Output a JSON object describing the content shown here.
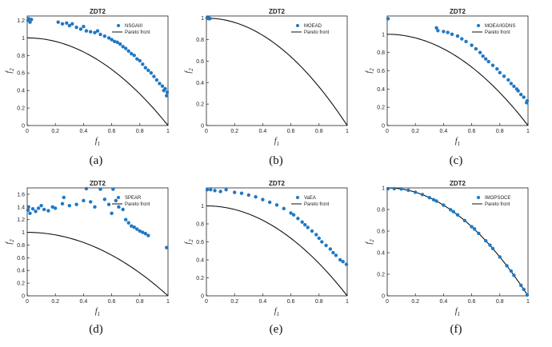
{
  "chart_data": [
    {
      "type": "scatter",
      "caption": "(a)",
      "title": "ZDT2",
      "xlabel": "f1",
      "ylabel": "f2",
      "xlim": [
        0,
        1
      ],
      "ylim": [
        0,
        1.25
      ],
      "xticks": [
        0,
        0.2,
        0.4,
        0.6,
        0.8,
        1
      ],
      "xtick_labels": [
        "0",
        "0.2",
        "0.4",
        "0.6",
        "0.8",
        "1"
      ],
      "yticks": [
        0,
        0.2,
        0.4,
        0.6,
        0.8,
        1,
        1.2
      ],
      "ytick_labels": [
        "0",
        "0.2",
        "0.4",
        "0.6",
        "0.8",
        "1",
        "1.2"
      ],
      "legend": [
        "NSGAIII",
        "Pareto front"
      ],
      "legend_position": "top-right",
      "series": [
        {
          "name": "NSGAIII",
          "points": [
            [
              0.0,
              1.2
            ],
            [
              0.01,
              1.22
            ],
            [
              0.02,
              1.18
            ],
            [
              0.03,
              1.21
            ],
            [
              0.22,
              1.18
            ],
            [
              0.25,
              1.16
            ],
            [
              0.28,
              1.17
            ],
            [
              0.3,
              1.14
            ],
            [
              0.32,
              1.16
            ],
            [
              0.35,
              1.12
            ],
            [
              0.38,
              1.1
            ],
            [
              0.4,
              1.13
            ],
            [
              0.42,
              1.08
            ],
            [
              0.45,
              1.07
            ],
            [
              0.48,
              1.06
            ],
            [
              0.5,
              1.08
            ],
            [
              0.52,
              1.04
            ],
            [
              0.55,
              1.02
            ],
            [
              0.58,
              1.0
            ],
            [
              0.6,
              0.98
            ],
            [
              0.62,
              0.96
            ],
            [
              0.64,
              0.95
            ],
            [
              0.66,
              0.93
            ],
            [
              0.68,
              0.9
            ],
            [
              0.7,
              0.88
            ],
            [
              0.72,
              0.85
            ],
            [
              0.74,
              0.82
            ],
            [
              0.76,
              0.8
            ],
            [
              0.78,
              0.76
            ],
            [
              0.8,
              0.74
            ],
            [
              0.82,
              0.7
            ],
            [
              0.84,
              0.66
            ],
            [
              0.86,
              0.63
            ],
            [
              0.88,
              0.6
            ],
            [
              0.9,
              0.56
            ],
            [
              0.92,
              0.52
            ],
            [
              0.94,
              0.48
            ],
            [
              0.96,
              0.45
            ],
            [
              0.98,
              0.42
            ],
            [
              1.0,
              0.38
            ],
            [
              0.99,
              0.34
            ],
            [
              0.97,
              0.4
            ]
          ]
        },
        {
          "name": "Pareto front",
          "function": "1 - x^2"
        }
      ]
    },
    {
      "type": "scatter",
      "caption": "(b)",
      "title": "ZDT2",
      "xlabel": "f1",
      "ylabel": "f2",
      "xlim": [
        0,
        1
      ],
      "ylim": [
        0,
        1.02
      ],
      "xticks": [
        0,
        0.2,
        0.4,
        0.6,
        0.8,
        1
      ],
      "xtick_labels": [
        "0",
        "0.2",
        "0.4",
        "0.6",
        "0.8",
        "1"
      ],
      "yticks": [
        0,
        0.2,
        0.4,
        0.6,
        0.8,
        1
      ],
      "ytick_labels": [
        "0",
        "0.2",
        "0.4",
        "0.6",
        "0.8",
        "1"
      ],
      "legend": [
        "MOEAD",
        "Pareto front"
      ],
      "legend_position": "top-right",
      "series": [
        {
          "name": "MOEAD",
          "points": [
            [
              0.0,
              1.0
            ],
            [
              0.005,
              1.0
            ],
            [
              0.01,
              1.0
            ],
            [
              0.015,
              0.995
            ],
            [
              0.02,
              1.0
            ],
            [
              0.025,
              0.995
            ]
          ]
        },
        {
          "name": "Pareto front",
          "function": "1 - x^2"
        }
      ]
    },
    {
      "type": "scatter",
      "caption": "(c)",
      "title": "ZDT2",
      "xlabel": "f1",
      "ylabel": "f2",
      "xlim": [
        0,
        1
      ],
      "ylim": [
        0,
        1.2
      ],
      "xticks": [
        0,
        0.2,
        0.4,
        0.6,
        0.8,
        1
      ],
      "xtick_labels": [
        "0",
        "0.2",
        "0.4",
        "0.6",
        "0.8",
        "1"
      ],
      "yticks": [
        0,
        0.2,
        0.4,
        0.6,
        0.8,
        1
      ],
      "ytick_labels": [
        "0",
        "0.2",
        "0.4",
        "0.6",
        "0.8",
        "1"
      ],
      "legend": [
        "MOEA/IGDNS",
        "Pareto front"
      ],
      "legend_position": "top-right",
      "series": [
        {
          "name": "MOEA/IGDNS",
          "points": [
            [
              0.0,
              1.17
            ],
            [
              0.35,
              1.07
            ],
            [
              0.36,
              1.04
            ],
            [
              0.4,
              1.03
            ],
            [
              0.43,
              1.02
            ],
            [
              0.46,
              1.0
            ],
            [
              0.5,
              0.98
            ],
            [
              0.53,
              0.95
            ],
            [
              0.56,
              0.92
            ],
            [
              0.6,
              0.88
            ],
            [
              0.63,
              0.84
            ],
            [
              0.66,
              0.8
            ],
            [
              0.68,
              0.76
            ],
            [
              0.7,
              0.73
            ],
            [
              0.72,
              0.7
            ],
            [
              0.75,
              0.66
            ],
            [
              0.78,
              0.62
            ],
            [
              0.8,
              0.58
            ],
            [
              0.83,
              0.54
            ],
            [
              0.86,
              0.5
            ],
            [
              0.88,
              0.46
            ],
            [
              0.9,
              0.43
            ],
            [
              0.93,
              0.38
            ],
            [
              0.95,
              0.34
            ],
            [
              0.97,
              0.31
            ],
            [
              1.0,
              0.27
            ],
            [
              0.99,
              0.25
            ],
            [
              0.92,
              0.4
            ]
          ]
        },
        {
          "name": "Pareto front",
          "function": "1 - x^2"
        }
      ]
    },
    {
      "type": "scatter",
      "caption": "(d)",
      "title": "ZDT2",
      "xlabel": "f1",
      "ylabel": "f2",
      "xlim": [
        0,
        1
      ],
      "ylim": [
        0,
        1.7
      ],
      "xticks": [
        0,
        0.2,
        0.4,
        0.6,
        0.8,
        1
      ],
      "xtick_labels": [
        "0",
        "0.2",
        "0.4",
        "0.6",
        "0.8",
        "1"
      ],
      "yticks": [
        0,
        0.2,
        0.4,
        0.6,
        0.8,
        1,
        1.2,
        1.4,
        1.6
      ],
      "ytick_labels": [
        "0",
        "0.2",
        "0.4",
        "0.6",
        "0.8",
        "1",
        "1.2",
        "1.4",
        "1.6"
      ],
      "legend": [
        "SPEAR",
        "Pareto front"
      ],
      "legend_position": "top-right",
      "series": [
        {
          "name": "SPEAR",
          "points": [
            [
              0.0,
              1.35
            ],
            [
              0.01,
              1.4
            ],
            [
              0.02,
              1.3
            ],
            [
              0.04,
              1.37
            ],
            [
              0.06,
              1.33
            ],
            [
              0.08,
              1.38
            ],
            [
              0.1,
              1.42
            ],
            [
              0.12,
              1.36
            ],
            [
              0.15,
              1.34
            ],
            [
              0.18,
              1.4
            ],
            [
              0.2,
              1.38
            ],
            [
              0.25,
              1.45
            ],
            [
              0.26,
              1.55
            ],
            [
              0.3,
              1.42
            ],
            [
              0.35,
              1.44
            ],
            [
              0.4,
              1.5
            ],
            [
              0.42,
              1.72
            ],
            [
              0.45,
              1.48
            ],
            [
              0.48,
              1.4
            ],
            [
              0.52,
              1.68
            ],
            [
              0.55,
              1.52
            ],
            [
              0.58,
              1.44
            ],
            [
              0.6,
              1.3
            ],
            [
              0.61,
              1.68
            ],
            [
              0.63,
              1.5
            ],
            [
              0.65,
              1.4
            ],
            [
              0.68,
              1.36
            ],
            [
              0.7,
              1.2
            ],
            [
              0.72,
              1.15
            ],
            [
              0.74,
              1.1
            ],
            [
              0.76,
              1.08
            ],
            [
              0.78,
              1.05
            ],
            [
              0.8,
              1.02
            ],
            [
              0.82,
              1.0
            ],
            [
              0.84,
              0.98
            ],
            [
              0.86,
              0.95
            ],
            [
              0.99,
              0.76
            ]
          ]
        },
        {
          "name": "Pareto front",
          "function": "1 - x^2"
        }
      ]
    },
    {
      "type": "scatter",
      "caption": "(e)",
      "title": "ZDT2",
      "xlabel": "f1",
      "ylabel": "f2",
      "xlim": [
        0,
        1
      ],
      "ylim": [
        0,
        1.2
      ],
      "xticks": [
        0,
        0.2,
        0.4,
        0.6,
        0.8,
        1
      ],
      "xtick_labels": [
        "0",
        "0.2",
        "0.4",
        "0.6",
        "0.8",
        "1"
      ],
      "yticks": [
        0,
        0.2,
        0.4,
        0.6,
        0.8,
        1
      ],
      "ytick_labels": [
        "0",
        "0.2",
        "0.4",
        "0.6",
        "0.8",
        "1"
      ],
      "legend": [
        "VaEA",
        "Pareto front"
      ],
      "legend_position": "top-right",
      "series": [
        {
          "name": "VaEA",
          "points": [
            [
              0.0,
              1.18
            ],
            [
              0.03,
              1.18
            ],
            [
              0.06,
              1.17
            ],
            [
              0.1,
              1.16
            ],
            [
              0.14,
              1.18
            ],
            [
              0.2,
              1.15
            ],
            [
              0.25,
              1.14
            ],
            [
              0.3,
              1.12
            ],
            [
              0.35,
              1.1
            ],
            [
              0.4,
              1.07
            ],
            [
              0.45,
              1.04
            ],
            [
              0.5,
              1.01
            ],
            [
              0.55,
              0.97
            ],
            [
              0.6,
              0.92
            ],
            [
              0.62,
              0.9
            ],
            [
              0.65,
              0.86
            ],
            [
              0.68,
              0.82
            ],
            [
              0.7,
              0.79
            ],
            [
              0.72,
              0.76
            ],
            [
              0.75,
              0.72
            ],
            [
              0.78,
              0.68
            ],
            [
              0.8,
              0.64
            ],
            [
              0.82,
              0.6
            ],
            [
              0.85,
              0.56
            ],
            [
              0.88,
              0.52
            ],
            [
              0.9,
              0.48
            ],
            [
              0.92,
              0.45
            ],
            [
              0.95,
              0.4
            ],
            [
              0.97,
              0.38
            ],
            [
              1.0,
              0.35
            ]
          ]
        },
        {
          "name": "Pareto front",
          "function": "1 - x^2"
        }
      ]
    },
    {
      "type": "scatter",
      "caption": "(f)",
      "title": "ZDT2",
      "xlabel": "f1",
      "ylabel": "f2",
      "xlim": [
        0,
        1
      ],
      "ylim": [
        0,
        1.0
      ],
      "xticks": [
        0,
        0.2,
        0.4,
        0.6,
        0.8,
        1
      ],
      "xtick_labels": [
        "0",
        "0.2",
        "0.4",
        "0.6",
        "0.8",
        "1"
      ],
      "yticks": [
        0,
        0.2,
        0.4,
        0.6,
        0.8,
        1
      ],
      "ytick_labels": [
        "0",
        "0.2",
        "0.4",
        "0.6",
        "0.8",
        "1"
      ],
      "legend": [
        "IMOPSOCE",
        "Pareto front"
      ],
      "legend_position": "top-right",
      "series": [
        {
          "name": "IMOPSOCE",
          "points": [
            [
              0.0,
              1.0
            ],
            [
              0.05,
              0.998
            ],
            [
              0.1,
              0.99
            ],
            [
              0.15,
              0.978
            ],
            [
              0.2,
              0.96
            ],
            [
              0.25,
              0.938
            ],
            [
              0.3,
              0.91
            ],
            [
              0.35,
              0.878
            ],
            [
              0.4,
              0.84
            ],
            [
              0.45,
              0.798
            ],
            [
              0.5,
              0.75
            ],
            [
              0.55,
              0.698
            ],
            [
              0.6,
              0.64
            ],
            [
              0.65,
              0.578
            ],
            [
              0.7,
              0.51
            ],
            [
              0.75,
              0.438
            ],
            [
              0.8,
              0.36
            ],
            [
              0.85,
              0.278
            ],
            [
              0.9,
              0.19
            ],
            [
              0.95,
              0.098
            ],
            [
              1.0,
              0.0
            ],
            [
              0.33,
              0.89
            ],
            [
              0.47,
              0.78
            ],
            [
              0.62,
              0.62
            ],
            [
              0.73,
              0.47
            ],
            [
              0.88,
              0.23
            ],
            [
              0.97,
              0.06
            ]
          ]
        },
        {
          "name": "Pareto front",
          "function": "1 - x^2"
        }
      ]
    }
  ]
}
